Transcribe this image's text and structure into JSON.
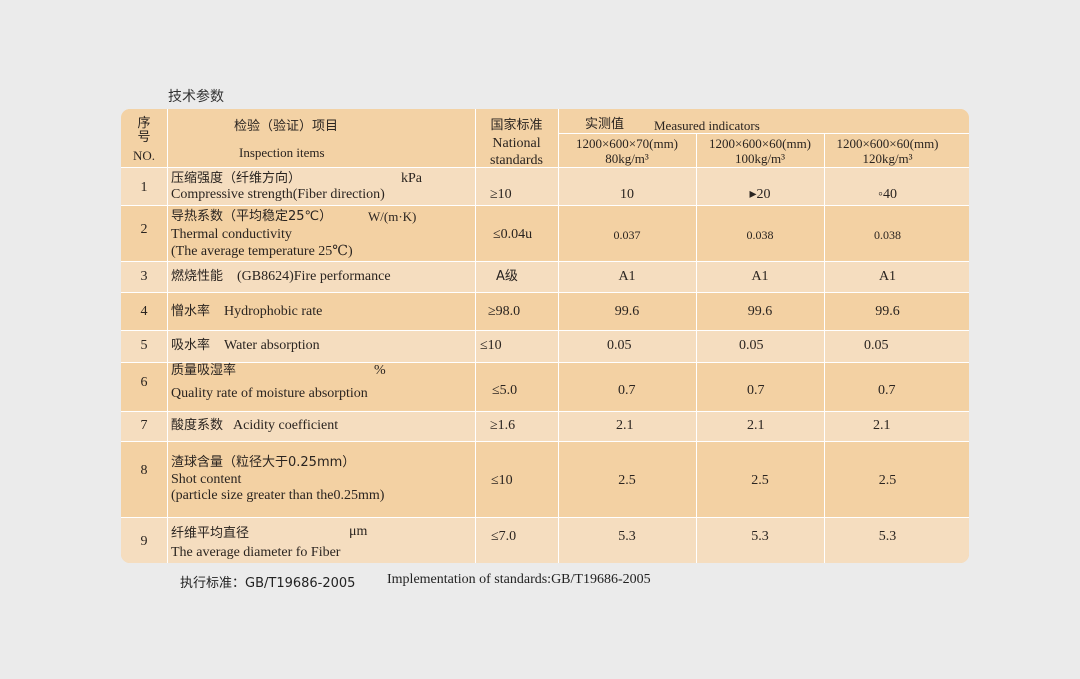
{
  "title": "技术参数",
  "header": {
    "no_cn1": "序",
    "no_cn2": "号",
    "no_en": "NO.",
    "item_cn": "检验（验证）项目",
    "item_en": "Inspection items",
    "std_cn": "国家标准",
    "std_en1": "National",
    "std_en2": "standards",
    "measured_cn": "实测值",
    "measured_en": "Measured indicators",
    "spec1_a": "1200×600×70(mm)",
    "spec1_b": "80kg/m³",
    "spec2_a": "1200×600×60(mm)",
    "spec2_b": "100kg/m³",
    "spec3_a": "1200×600×60(mm)",
    "spec3_b": "120kg/m³"
  },
  "rows": [
    {
      "no": "1",
      "cn": "压缩强度（纤维方向）",
      "unit": "kPa",
      "en1": "Compressive strength(Fiber direction)",
      "en2": "",
      "std": "≥10",
      "v1": "10",
      "v2": "▸20",
      "v3": "◦40"
    },
    {
      "no": "2",
      "cn": "导热系数（平均稳定25℃）",
      "unit": "W/(m·K)",
      "en1": "Thermal conductivity",
      "en2": "(The average temperature 25℃)",
      "std": "≤0.04u",
      "v1": "0.037",
      "v2": "0.038",
      "v3": "0.038"
    },
    {
      "no": "3",
      "cn": "燃烧性能",
      "unit": "",
      "en1": "(GB8624)Fire performance",
      "en2": "",
      "std": "A级",
      "v1": "A1",
      "v2": "A1",
      "v3": "A1"
    },
    {
      "no": "4",
      "cn": "憎水率",
      "unit": "",
      "en1": "Hydrophobic rate",
      "en2": "",
      "std": "≥98.0",
      "v1": "99.6",
      "v2": "99.6",
      "v3": "99.6"
    },
    {
      "no": "5",
      "cn": "吸水率",
      "unit": "",
      "en1": "Water absorption",
      "en2": "",
      "std": "≤10",
      "v1": "0.05",
      "v2": "0.05",
      "v3": "0.05"
    },
    {
      "no": "6",
      "cn": "质量吸湿率",
      "unit": "%",
      "en1": "Quality rate of moisture absorption",
      "en2": "",
      "std": "≤5.0",
      "v1": "0.7",
      "v2": "0.7",
      "v3": "0.7"
    },
    {
      "no": "7",
      "cn": "酸度系数",
      "unit": "",
      "en1": "Acidity coefficient",
      "en2": "",
      "std": "≥1.6",
      "v1": "2.1",
      "v2": "2.1",
      "v3": "2.1"
    },
    {
      "no": "8",
      "cn": "渣球含量（粒径大于0.25mm）",
      "unit": "",
      "en1": "Shot content",
      "en2": "(particle size greater than the0.25mm)",
      "std": "≤10",
      "v1": "2.5",
      "v2": "2.5",
      "v3": "2.5"
    },
    {
      "no": "9",
      "cn": "纤维平均直径",
      "unit": "μm",
      "en1": "The average diameter fo Fiber",
      "en2": "",
      "std": "≤7.0",
      "v1": "5.3",
      "v2": "5.3",
      "v3": "5.3"
    }
  ],
  "footer": {
    "cn": "执行标准：GB/T19686-2005",
    "en": "Implementation of standards:GB/T19686-2005"
  }
}
